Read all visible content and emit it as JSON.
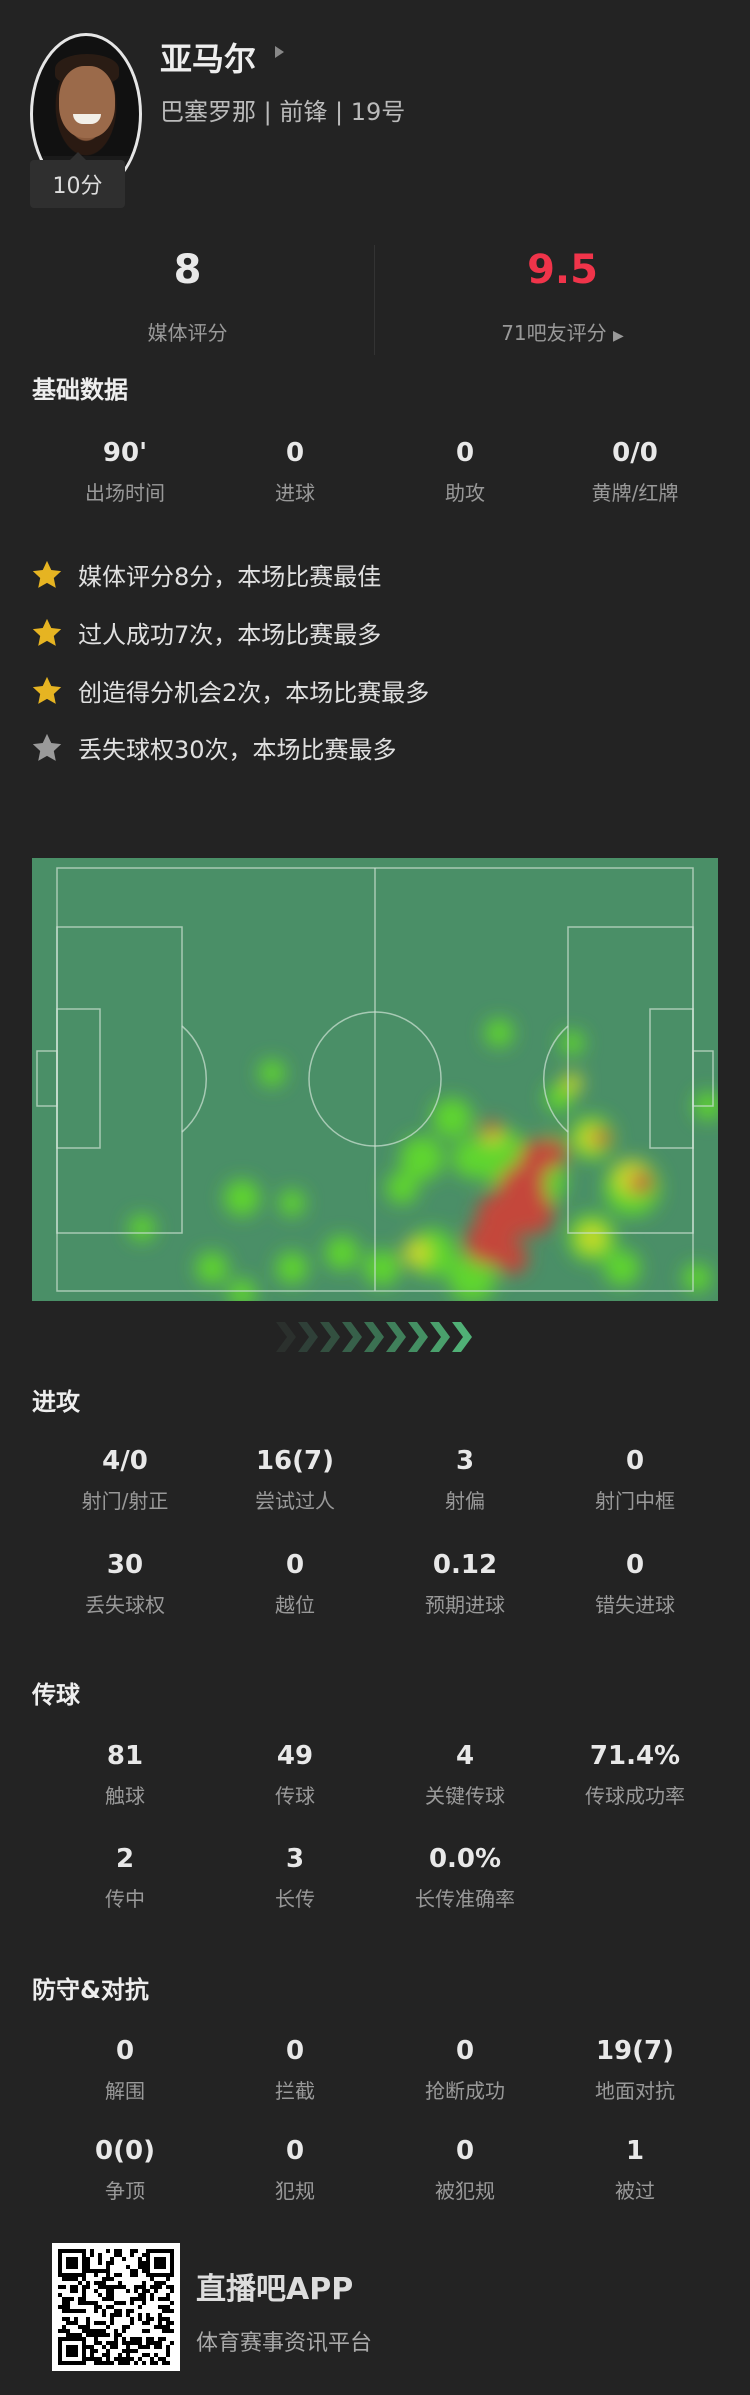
{
  "player": {
    "name": "亚马尔",
    "team": "巴塞罗那",
    "position": "前锋",
    "number": "19号",
    "score_badge": "10分"
  },
  "ratings": {
    "media": {
      "value": "8",
      "label": "媒体评分"
    },
    "fans": {
      "value": "9.5",
      "label": "71吧友评分",
      "color": "#f0344a"
    }
  },
  "basic": {
    "title": "基础数据",
    "stats": [
      {
        "v": "90'",
        "l": "出场时间"
      },
      {
        "v": "0",
        "l": "进球"
      },
      {
        "v": "0",
        "l": "助攻"
      },
      {
        "v": "0/0",
        "l": "黄牌/红牌"
      }
    ]
  },
  "highlights": [
    {
      "text": "媒体评分8分，本场比赛最佳",
      "star": "gold"
    },
    {
      "text": "过人成功7次，本场比赛最多",
      "star": "gold"
    },
    {
      "text": "创造得分机会2次，本场比赛最多",
      "star": "gold"
    },
    {
      "text": "丢失球权30次，本场比赛最多",
      "star": "gray"
    }
  ],
  "colors": {
    "gold": "#e6b422",
    "gray": "#9a9a9a",
    "pitch": "#4a8f67"
  },
  "attack": {
    "title": "进攻",
    "rows": [
      [
        {
          "v": "4/0",
          "l": "射门/射正"
        },
        {
          "v": "16(7)",
          "l": "尝试过人"
        },
        {
          "v": "3",
          "l": "射偏"
        },
        {
          "v": "0",
          "l": "射门中框"
        }
      ],
      [
        {
          "v": "30",
          "l": "丢失球权"
        },
        {
          "v": "0",
          "l": "越位"
        },
        {
          "v": "0.12",
          "l": "预期进球"
        },
        {
          "v": "0",
          "l": "错失进球"
        }
      ]
    ]
  },
  "passing": {
    "title": "传球",
    "rows": [
      [
        {
          "v": "81",
          "l": "触球"
        },
        {
          "v": "49",
          "l": "传球"
        },
        {
          "v": "4",
          "l": "关键传球"
        },
        {
          "v": "71.4%",
          "l": "传球成功率"
        }
      ],
      [
        {
          "v": "2",
          "l": "传中"
        },
        {
          "v": "3",
          "l": "长传"
        },
        {
          "v": "0.0%",
          "l": "长传准确率"
        }
      ]
    ]
  },
  "defense": {
    "title": "防守&对抗",
    "rows": [
      [
        {
          "v": "0",
          "l": "解围"
        },
        {
          "v": "0",
          "l": "拦截"
        },
        {
          "v": "0",
          "l": "抢断成功"
        },
        {
          "v": "19(7)",
          "l": "地面对抗"
        }
      ],
      [
        {
          "v": "0(0)",
          "l": "争顶"
        },
        {
          "v": "0",
          "l": "犯规"
        },
        {
          "v": "0",
          "l": "被犯规"
        },
        {
          "v": "1",
          "l": "被过"
        }
      ]
    ]
  },
  "footer": {
    "app": "直播吧APP",
    "tagline": "体育赛事资讯平台"
  }
}
